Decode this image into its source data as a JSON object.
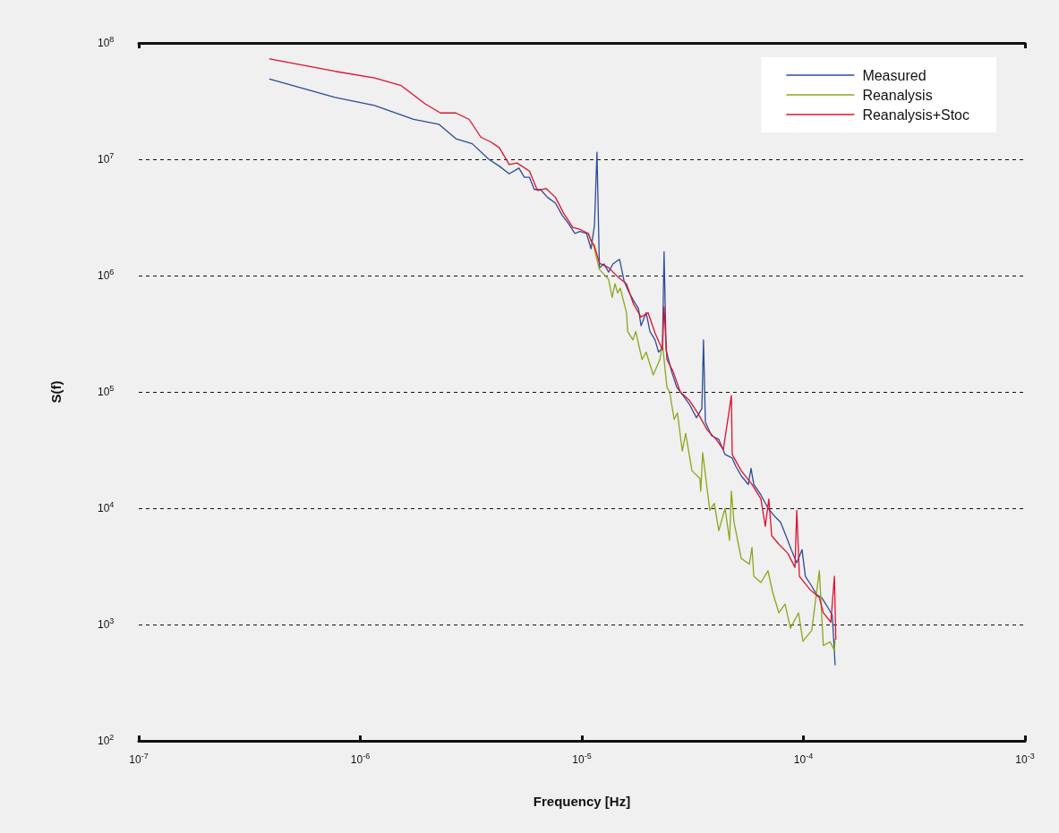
{
  "chart_data": {
    "type": "line",
    "xlabel": "Frequency [Hz]",
    "ylabel": "S(f)",
    "log": "xy",
    "grid": "y",
    "legend": "top right",
    "marker": "none",
    "line_style": "solid",
    "xlim": [
      1e-07,
      0.001
    ],
    "ylim": [
      100,
      100000000
    ],
    "xticks": [
      {
        "value": 1e-07,
        "label": "10$^{-7}$"
      },
      {
        "value": 1e-06,
        "label": "10$^{-6}$"
      },
      {
        "value": 1e-05,
        "label": "10$^{-5}$"
      },
      {
        "value": 0.0001,
        "label": "10$^{-4}$"
      },
      {
        "value": 0.001,
        "label": "10$^{-3}$"
      }
    ],
    "yticks": [
      {
        "value": 100,
        "label": "10$^{2}$"
      },
      {
        "value": 1000,
        "label": "10$^{3}$"
      },
      {
        "value": 10000,
        "label": "10$^{4}$"
      },
      {
        "value": 100000,
        "label": "10$^{5}$"
      },
      {
        "value": 1000000,
        "label": "10$^{6}$"
      },
      {
        "value": 10000000,
        "label": "10$^{7}$"
      },
      {
        "value": 100000000,
        "label": "10$^{8}$"
      }
    ],
    "series": [
      {
        "name": "Measured",
        "color": "#2e4a9a",
        "x": [
          3.9e-07,
          7.7e-07,
          1.16e-06,
          1.74e-06,
          2.26e-06,
          2.7e-06,
          3.2e-06,
          3.8e-06,
          4.25e-06,
          4.7e-06,
          5.2e-06,
          5.5e-06,
          5.8e-06,
          6.1e-06,
          6.5e-06,
          7e-06,
          7.6e-06,
          8.15e-06,
          8.7e-06,
          9.3e-06,
          9.8e-06,
          1.05e-05,
          1.1e-05,
          1.14e-05,
          1.17e-05,
          1.2e-05,
          1.26e-05,
          1.32e-05,
          1.38e-05,
          1.48e-05,
          1.55e-05,
          1.62e-05,
          1.71e-05,
          1.8e-05,
          1.85e-05,
          1.95e-05,
          2.03e-05,
          2.14e-05,
          2.22e-05,
          2.31e-05,
          2.35e-05,
          2.4e-05,
          2.54e-05,
          2.68e-05,
          2.84e-05,
          3.05e-05,
          3.29e-05,
          3.48e-05,
          3.54e-05,
          3.61e-05,
          3.85e-05,
          4.15e-05,
          4.43e-05,
          4.77e-05,
          4.95e-05,
          5.24e-05,
          5.64e-05,
          5.8e-05,
          5.97e-05,
          6.43e-05,
          6.92e-05,
          7.46e-05,
          7.88e-05,
          8.34e-05,
          8.81e-05,
          9.33e-05,
          9.86e-05,
          0.000102,
          0.000108,
          0.000115,
          0.000121,
          0.000129,
          0.000135,
          0.000139
        ],
        "values": [
          49000000.0,
          34000000.0,
          29000000.0,
          22000000.0,
          20000000.0,
          15000000.0,
          13600000.0,
          10000000.0,
          8700000.0,
          7500000.0,
          8400000.0,
          7000000.0,
          7000000.0,
          5500000.0,
          5500000.0,
          4700000.0,
          4200000.0,
          3300000.0,
          2800000.0,
          2300000.0,
          2400000.0,
          2300000.0,
          1700000.0,
          2700000.0,
          11500000.0,
          1170000.0,
          1260000.0,
          1070000.0,
          1260000.0,
          1380000.0,
          900000.0,
          740000.0,
          610000.0,
          520000.0,
          370000.0,
          480000.0,
          330000.0,
          280000.0,
          220000.0,
          240000.0,
          1600000.0,
          230000.0,
          150000.0,
          110000.0,
          95000.0,
          79000.0,
          60000.0,
          72000.0,
          280000.0,
          55000.0,
          42000.0,
          39000.0,
          29000.0,
          27000.0,
          23000.0,
          19000.0,
          16000.0,
          22000.0,
          16000.0,
          13000.0,
          10000.0,
          8400.0,
          7600.0,
          5800.0,
          4400.0,
          3400.0,
          4400.0,
          2600.0,
          2200.0,
          1800.0,
          1700.0,
          1400.0,
          1200.0,
          450.0
        ]
      },
      {
        "name": "Reanalysis",
        "color": "#8ca61c",
        "x": [
          1.07e-05,
          1.1e-05,
          1.13e-05,
          1.2e-05,
          1.32e-05,
          1.37e-05,
          1.41e-05,
          1.45e-05,
          1.49e-05,
          1.59e-05,
          1.61e-05,
          1.7e-05,
          1.75e-05,
          1.87e-05,
          1.95e-05,
          2.1e-05,
          2.25e-05,
          2.31e-05,
          2.42e-05,
          2.49e-05,
          2.61e-05,
          2.7e-05,
          2.84e-05,
          2.94e-05,
          3.14e-05,
          3.41e-05,
          3.44e-05,
          3.51e-05,
          3.78e-05,
          3.96e-05,
          4.15e-05,
          4.43e-05,
          4.64e-05,
          4.73e-05,
          4.86e-05,
          5.24e-05,
          5.7e-05,
          5.86e-05,
          5.97e-05,
          6.43e-05,
          6.92e-05,
          7.26e-05,
          7.75e-05,
          8.26e-05,
          8.74e-05,
          9.5e-05,
          9.95e-05,
          0.000109,
          0.000118,
          0.000123,
          0.000132,
          0.000138,
          0.000139
        ],
        "values": [
          2300000.0,
          2000000.0,
          1800000.0,
          1130000.0,
          930000.0,
          650000.0,
          850000.0,
          710000.0,
          780000.0,
          480000.0,
          330000.0,
          280000.0,
          330000.0,
          190000.0,
          220000.0,
          140000.0,
          190000.0,
          260000.0,
          110000.0,
          100000.0,
          58000.0,
          66000.0,
          31000.0,
          44000.0,
          21000.0,
          18000.0,
          14000.0,
          30000.0,
          9600.0,
          11000.0,
          6400.0,
          10000.0,
          5300.0,
          14000.0,
          7600.0,
          3700.0,
          3300.0,
          4600.0,
          2600.0,
          2300.0,
          2900.0,
          1900.0,
          1260.0,
          1500.0,
          930.0,
          1260.0,
          720.0,
          890.0,
          2900.0,
          660.0,
          710.0,
          600.0,
          750.0
        ]
      },
      {
        "name": "Reanalysis+Stoc",
        "color": "#e0102f",
        "x": [
          3.9e-07,
          7.7e-07,
          1.16e-06,
          1.53e-06,
          1.96e-06,
          2.3e-06,
          2.7e-06,
          3.1e-06,
          3.5e-06,
          3.9e-06,
          4.25e-06,
          4.7e-06,
          5.1e-06,
          5.8e-06,
          6.3e-06,
          6.9e-06,
          7.6e-06,
          8.3e-06,
          9.1e-06,
          9.8e-06,
          1.07e-05,
          1.1e-05,
          1.14e-05,
          1.2e-05,
          1.32e-05,
          1.45e-05,
          1.59e-05,
          1.71e-05,
          1.85e-05,
          1.99e-05,
          2.14e-05,
          2.31e-05,
          2.35e-05,
          2.42e-05,
          2.58e-05,
          2.78e-05,
          3.05e-05,
          3.35e-05,
          3.68e-05,
          4.04e-05,
          4.35e-05,
          4.73e-05,
          4.77e-05,
          5.24e-05,
          5.86e-05,
          6.43e-05,
          6.73e-05,
          6.98e-05,
          7.19e-05,
          7.75e-05,
          8.5e-05,
          9.16e-05,
          9.33e-05,
          9.59e-05,
          0.000107,
          0.000118,
          0.000123,
          0.000133,
          0.000138,
          0.00014
        ],
        "values": [
          73000000.0,
          57000000.0,
          50000000.0,
          43000000.0,
          30000000.0,
          25000000.0,
          25000000.0,
          22000000.0,
          15500000.0,
          14000000.0,
          12500000.0,
          9000000.0,
          9300000.0,
          7900000.0,
          5400000.0,
          5600000.0,
          4700000.0,
          3400000.0,
          2600000.0,
          2500000.0,
          2300000.0,
          2000000.0,
          1800000.0,
          1280000.0,
          1170000.0,
          980000.0,
          850000.0,
          570000.0,
          440000.0,
          480000.0,
          320000.0,
          230000.0,
          540000.0,
          190000.0,
          150000.0,
          100000.0,
          85000.0,
          65000.0,
          47000.0,
          39000.0,
          32000.0,
          93000.0,
          29000.0,
          21000.0,
          16000.0,
          12000.0,
          7000.0,
          12000.0,
          5800.0,
          4900.0,
          4100.0,
          3100.0,
          9600.0,
          2600.0,
          2000.0,
          1700.0,
          1260.0,
          1050.0,
          2600.0,
          750.0
        ]
      }
    ]
  }
}
